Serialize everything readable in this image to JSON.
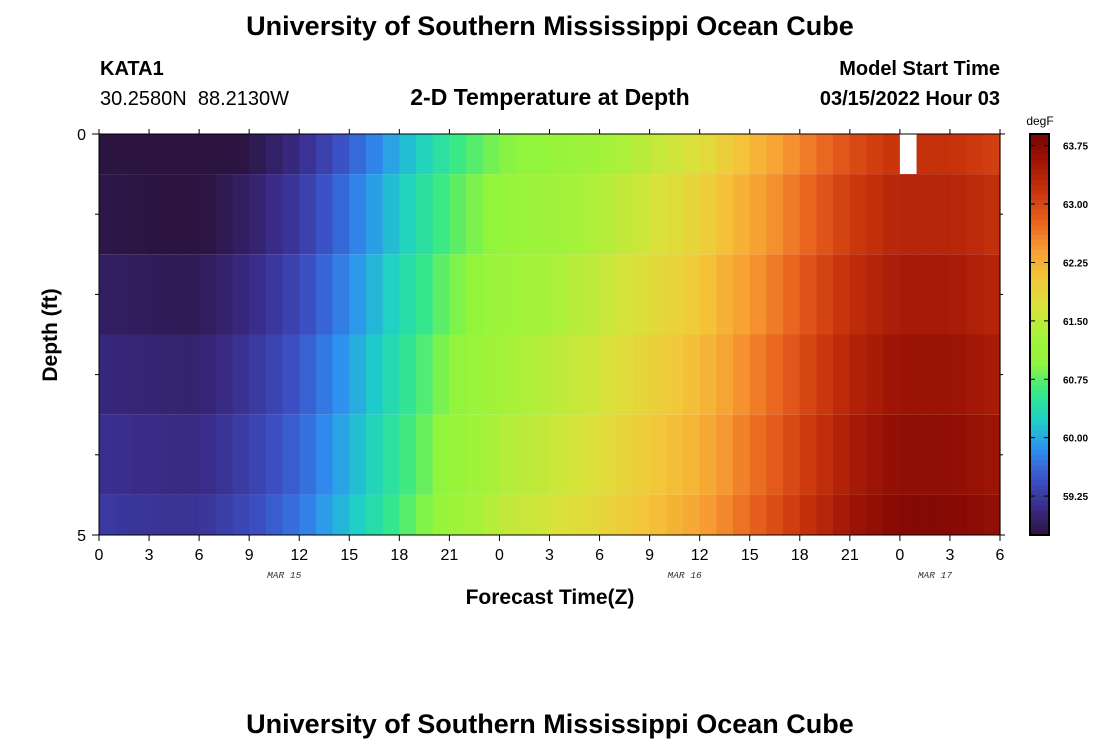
{
  "page": {
    "title": "University of Southern Mississippi Ocean Cube",
    "footer_title": "University of Southern Mississippi Ocean Cube"
  },
  "station": {
    "id": "KATA1",
    "coords": "30.2580N  88.2130W"
  },
  "model": {
    "label": "Model Start Time",
    "time": "03/15/2022 Hour 03"
  },
  "chart_data": {
    "type": "heatmap",
    "title": "2-D Temperature at Depth",
    "xlabel": "Forecast Time(Z)",
    "ylabel": "Depth (ft)",
    "yticks": [
      {
        "value": 0,
        "label": "0"
      },
      {
        "value": 5,
        "label": "5"
      }
    ],
    "ylim": [
      0,
      5
    ],
    "y_minor_ticks": [
      1,
      2,
      3,
      4
    ],
    "xticks": [
      "0",
      "3",
      "6",
      "9",
      "12",
      "15",
      "18",
      "21",
      "0",
      "3",
      "6",
      "9",
      "12",
      "15",
      "18",
      "21",
      "0",
      "3",
      "6"
    ],
    "dates": [
      {
        "label": "MAR 15",
        "tick_index": 3.7
      },
      {
        "label": "MAR 16",
        "tick_index": 11.7
      },
      {
        "label": "MAR 17",
        "tick_index": 16.7
      }
    ],
    "time_hours": [
      0,
      54
    ],
    "depth_bands": [
      {
        "from": 0,
        "to": 0.5,
        "offset": -0.4,
        "gap_hours": [
          48,
          49
        ]
      },
      {
        "from": 0.5,
        "to": 1.5,
        "offset": -0.25
      },
      {
        "from": 1.5,
        "to": 2.5,
        "offset": -0.12
      },
      {
        "from": 2.5,
        "to": 3.5,
        "offset": 0.0
      },
      {
        "from": 3.5,
        "to": 4.5,
        "offset": 0.1
      },
      {
        "from": 4.5,
        "to": 5.0,
        "offset": 0.2
      }
    ],
    "temperature_profile": {
      "hours": [
        0,
        3,
        6,
        9,
        12,
        15,
        18,
        21,
        24,
        27,
        30,
        33,
        36,
        39,
        42,
        45,
        48,
        51,
        54
      ],
      "values": [
        59.05,
        59.0,
        58.98,
        59.2,
        59.5,
        59.95,
        60.45,
        60.95,
        61.3,
        61.45,
        61.65,
        61.9,
        62.15,
        62.55,
        62.95,
        63.35,
        63.6,
        63.6,
        63.45
      ]
    },
    "colorbar": {
      "label": "degF",
      "range": [
        58.75,
        63.9
      ],
      "ticks": [
        "59.25",
        "60.00",
        "60.75",
        "61.50",
        "62.25",
        "63.00",
        "63.75"
      ],
      "tick_values": [
        59.25,
        60.0,
        60.75,
        61.5,
        62.25,
        63.0,
        63.75
      ],
      "colormap": [
        "#2b1440",
        "#3a2c8a",
        "#3b52c8",
        "#2f8ef0",
        "#1ecfc8",
        "#35e88a",
        "#8ff53c",
        "#a6f23a",
        "#d9e23a",
        "#f4c63a",
        "#f79b32",
        "#e8601e",
        "#c9340c",
        "#a11606",
        "#7a0403"
      ]
    }
  }
}
